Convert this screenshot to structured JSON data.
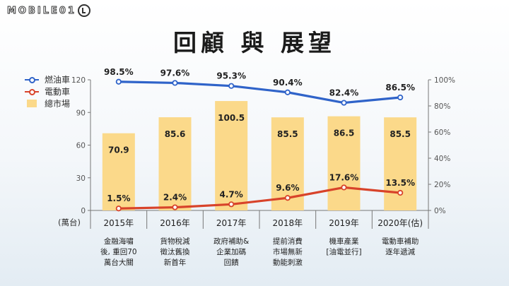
{
  "logo": {
    "text": "MOBILE01"
  },
  "title": "回顧 與 展望",
  "legend": [
    {
      "label": "燃油車",
      "color": "#2f63c9",
      "kind": "line"
    },
    {
      "label": "電動車",
      "color": "#d8432a",
      "kind": "line"
    },
    {
      "label": "總市場",
      "color": "#fbd98a",
      "kind": "bar"
    }
  ],
  "x_unit_label": "(萬台)",
  "notes": [
    "金融海嘯\n後, 重回70\n萬台大關",
    "貨物稅減\n徵汰舊換\n新首年",
    "政府補助&\n企業加碼\n回饋",
    "提前消費\n市場無新\n動能刺激",
    "機車產業\n[油電並行]",
    "電動車補助\n逐年遞減"
  ],
  "chart_data": {
    "type": "bar",
    "categories": [
      "2015年",
      "2016年",
      "2017年",
      "2018年",
      "2019年",
      "2020年(估)"
    ],
    "bar_series": {
      "name": "總市場",
      "values": [
        70.9,
        85.6,
        100.5,
        85.5,
        86.5,
        85.5
      ],
      "labels": [
        "70.9",
        "85.6",
        "100.5",
        "85.5",
        "86.5",
        "85.5"
      ]
    },
    "line_series": [
      {
        "name": "燃油車",
        "values": [
          98.5,
          97.6,
          95.3,
          90.4,
          82.4,
          86.5
        ],
        "labels": [
          "98.5%",
          "97.6%",
          "95.3%",
          "90.4%",
          "82.4%",
          "86.5%"
        ],
        "color": "#2f63c9"
      },
      {
        "name": "電動車",
        "values": [
          1.5,
          2.4,
          4.7,
          9.6,
          17.6,
          13.5
        ],
        "labels": [
          "1.5%",
          "2.4%",
          "4.7%",
          "9.6%",
          "17.6%",
          "13.5%"
        ],
        "color": "#d8432a"
      }
    ],
    "y_left": {
      "ylim": [
        0,
        120
      ],
      "ticks": [
        "0",
        "30",
        "60",
        "90",
        "120"
      ]
    },
    "y_right": {
      "ylim": [
        0,
        100
      ],
      "ticks": [
        "0%",
        "20%",
        "40%",
        "60%",
        "80%",
        "100%"
      ]
    },
    "grid": false,
    "legend_position": "top-left"
  }
}
